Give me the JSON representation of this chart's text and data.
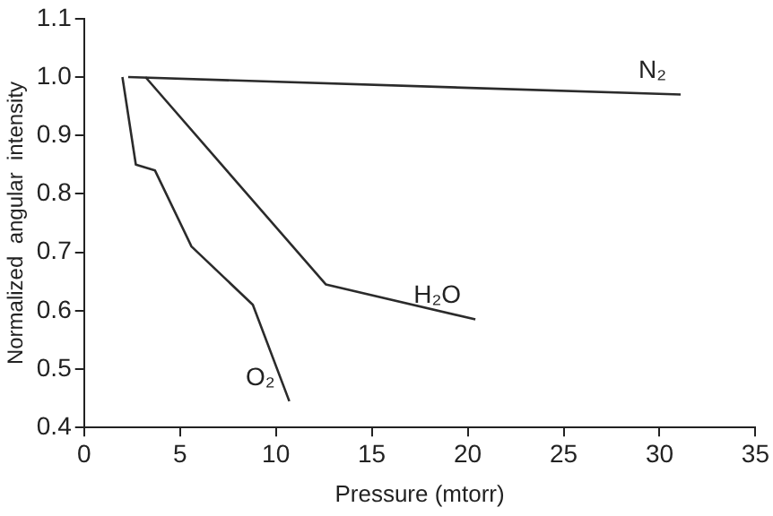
{
  "chart_data": {
    "type": "line",
    "xlabel": "Pressure (mtorr)",
    "ylabel": "Normalized  angular  intensity",
    "xlim": [
      0,
      35
    ],
    "xticks": [
      0,
      5,
      10,
      15,
      20,
      25,
      30,
      35
    ],
    "ylim": [
      0.4,
      1.1
    ],
    "yticks": [
      {
        "value": 0.4,
        "label": "0.4"
      },
      {
        "value": 0.5,
        "label": "0.5"
      },
      {
        "value": 0.6,
        "label": "0.6"
      },
      {
        "value": 0.7,
        "label": "0.7"
      },
      {
        "value": 0.8,
        "label": "0.8"
      },
      {
        "value": 0.9,
        "label": "0.9"
      },
      {
        "value": 1.0,
        "label": "1.0"
      },
      {
        "value": 1.1,
        "label": "1.1"
      }
    ],
    "grid": false,
    "legend": false,
    "marker": "none",
    "line_style": "solid",
    "series": [
      {
        "name": "N₂",
        "color": "#2b2b2b",
        "x": [
          2.3,
          31.1
        ],
        "values": [
          1.0,
          0.97
        ]
      },
      {
        "name": "H₂O",
        "color": "#2b2b2b",
        "x": [
          3.2,
          12.6,
          20.4
        ],
        "values": [
          1.0,
          0.645,
          0.585
        ]
      },
      {
        "name": "O₂",
        "color": "#2b2b2b",
        "x": [
          2.0,
          2.7,
          3.7,
          5.6,
          8.8,
          10.7
        ],
        "values": [
          1.0,
          0.85,
          0.84,
          0.71,
          0.61,
          0.445
        ]
      }
    ]
  }
}
